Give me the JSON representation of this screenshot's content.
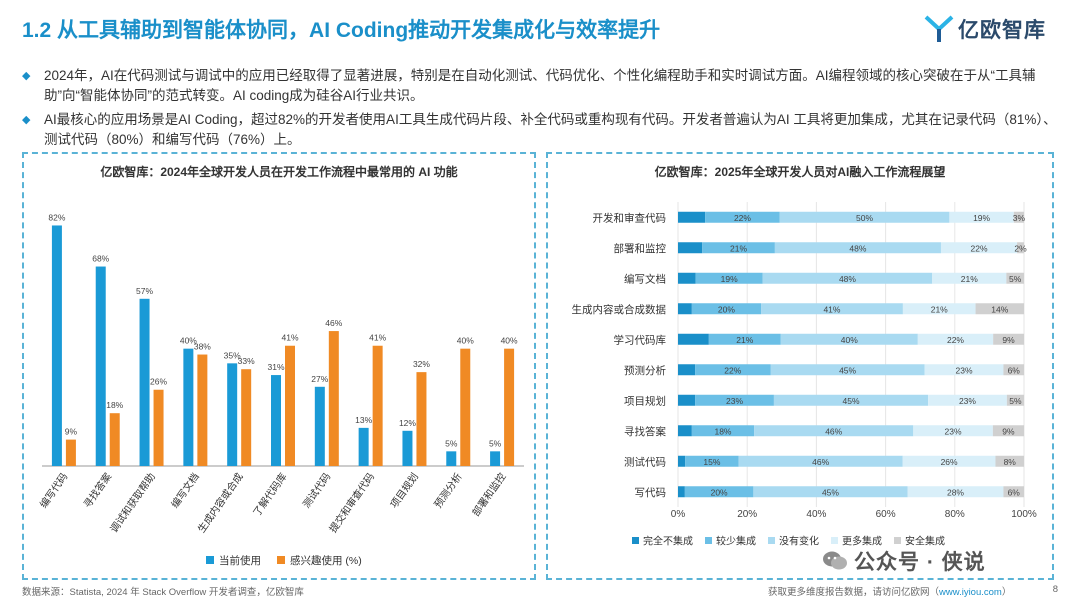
{
  "header": {
    "title": "1.2 从工具辅助到智能体协同，AI Coding推动开发集成化与效率提升",
    "logo_text": "亿欧智库"
  },
  "bullets": [
    "2024年，AI在代码测试与调试中的应用已经取得了显著进展，特别是在自动化测试、代码优化、个性化编程助手和实时调试方面。AI编程领域的核心突破在于从“工具辅助”向“智能体协同”的范式转变。AI coding成为硅谷AI行业共识。",
    "AI最核心的应用场景是AI Coding，超过82%的开发者使用AI工具生成代码片段、补全代码或重构现有代码。开发者普遍认为AI 工具将更加集成，尤其在记录代码（81%）、测试代码（80%）和编写代码（76%）上。"
  ],
  "chart_data": [
    {
      "type": "bar",
      "title": "亿欧智库：2024年全球开发人员在开发工作流程中最常用的 AI 功能",
      "categories": [
        "编写代码",
        "寻找答案",
        "调试和获取帮助",
        "编写文档",
        "生成内容或合成",
        "了解代码库",
        "测试代码",
        "提交和审查代码",
        "项目规划",
        "预测分析",
        "部署和监控"
      ],
      "series": [
        {
          "name": "当前使用",
          "color": "#1a9ad6",
          "values": [
            82,
            68,
            57,
            40,
            35,
            31,
            27,
            13,
            12,
            5,
            5
          ]
        },
        {
          "name": "感兴趣使用 (%)",
          "color": "#f08a24",
          "values": [
            9,
            18,
            26,
            38,
            33,
            41,
            46,
            41,
            32,
            40,
            40
          ]
        }
      ],
      "ylim": [
        0,
        90
      ],
      "legend": "bottom",
      "grid": false
    },
    {
      "type": "bar",
      "title": "亿欧智库：2025年全球开发人员对AI融入工作流程展望",
      "categories": [
        "开发和审查代码",
        "部署和监控",
        "编写文档",
        "生成内容或合成数据",
        "学习代码库",
        "预测分析",
        "项目规划",
        "寻找答案",
        "测试代码",
        "写代码"
      ],
      "series": [
        {
          "name": "完全不集成",
          "color": "#1a8fc9",
          "values": [
            8,
            7,
            5,
            4,
            9,
            5,
            5,
            4,
            2,
            2
          ]
        },
        {
          "name": "较少集成",
          "color": "#6bbfe6",
          "values": [
            22,
            21,
            19,
            20,
            21,
            22,
            23,
            18,
            15,
            20
          ]
        },
        {
          "name": "没有变化",
          "color": "#a9daf1",
          "values": [
            50,
            48,
            48,
            41,
            40,
            45,
            45,
            46,
            46,
            45
          ]
        },
        {
          "name": "更多集成",
          "color": "#d9eff9",
          "values": [
            19,
            22,
            21,
            21,
            22,
            23,
            23,
            23,
            26,
            28
          ]
        },
        {
          "name": "安全集成",
          "color": "#d0d0d0",
          "values": [
            3,
            2,
            5,
            14,
            9,
            6,
            5,
            9,
            8,
            6
          ]
        }
      ],
      "labels": [
        [
          "",
          "22%",
          "50%",
          "19%",
          "3%"
        ],
        [
          "",
          "21%",
          "48%",
          "22%",
          "2%"
        ],
        [
          "",
          "19%",
          "48%",
          "21%",
          "5%"
        ],
        [
          "",
          "20%",
          "41%",
          "21%",
          "14%"
        ],
        [
          "",
          "21%",
          "40%",
          "22%",
          "9%"
        ],
        [
          "",
          "22%",
          "45%",
          "23%",
          "6%"
        ],
        [
          "",
          "23%",
          "45%",
          "23%",
          "5%"
        ],
        [
          "",
          "18%",
          "46%",
          "23%",
          "9%"
        ],
        [
          "",
          "15%",
          "46%",
          "26%",
          "8%"
        ],
        [
          "",
          "20%",
          "45%",
          "28%",
          "6%"
        ]
      ],
      "xticks": [
        "0%",
        "20%",
        "40%",
        "60%",
        "80%",
        "100%"
      ],
      "orientation": "horizontal",
      "stacked": true,
      "legend": "bottom"
    }
  ],
  "footer": {
    "source": "数据来源：Statista, 2024 年 Stack Overflow 开发者调查，亿欧智库",
    "more_prefix": "获取更多维度报告数据，请访问亿欧网（",
    "more_url": "www.iyiou.com",
    "more_suffix": "）",
    "page": "8"
  },
  "watermark": {
    "text": "公众号 · 侠说"
  }
}
